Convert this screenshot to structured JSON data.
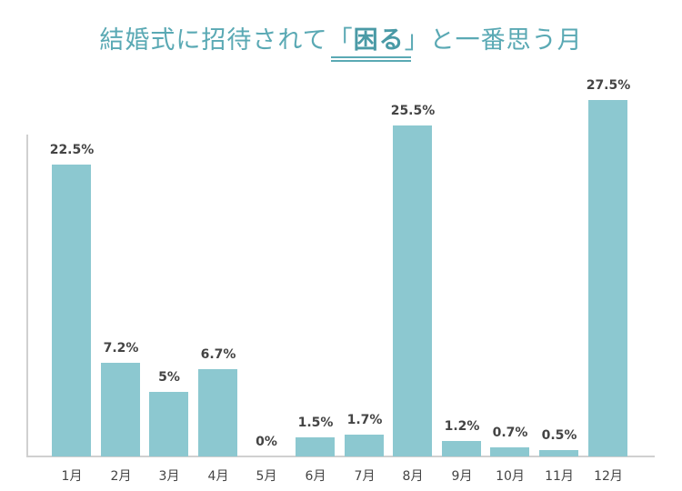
{
  "chart_data": {
    "type": "bar",
    "title": "結婚式に招待されて「困る」と一番思う月",
    "title_parts": {
      "before": "結婚式に招待されて「",
      "emphasis": "困る",
      "after": "」と一番思う月"
    },
    "categories": [
      "1月",
      "2月",
      "3月",
      "4月",
      "5月",
      "6月",
      "7月",
      "8月",
      "9月",
      "10月",
      "11月",
      "12月"
    ],
    "values": [
      22.5,
      7.2,
      5,
      6.7,
      0,
      1.5,
      1.7,
      25.5,
      1.2,
      0.7,
      0.5,
      27.5
    ],
    "labels": [
      "22.5%",
      "7.2%",
      "5%",
      "6.7%",
      "0%",
      "1.5%",
      "1.7%",
      "25.5%",
      "1.2%",
      "0.7%",
      "0.5%",
      "27.5%"
    ],
    "xlabel": "",
    "ylabel": "",
    "unit": "%",
    "grid": false,
    "colors": {
      "bar": "#8cc8d0",
      "title": "#5aa9b4"
    }
  }
}
